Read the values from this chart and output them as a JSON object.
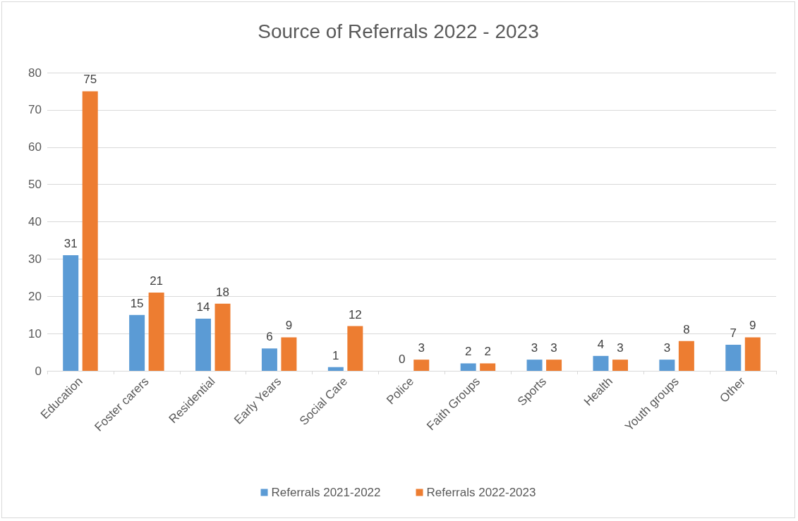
{
  "chart_data": {
    "type": "bar",
    "title": "Source of Referrals 2022 - 2023",
    "categories": [
      "Education",
      "Foster carers",
      "Residential",
      "Early Years",
      "Social Care",
      "Police",
      "Faith Groups",
      "Sports",
      "Health",
      "Youth groups",
      "Other"
    ],
    "series": [
      {
        "name": "Referrals 2021-2022",
        "color": "#5b9bd5",
        "values": [
          31,
          15,
          14,
          6,
          1,
          0,
          2,
          3,
          4,
          3,
          7
        ]
      },
      {
        "name": "Referrals 2022-2023",
        "color": "#ed7d31",
        "values": [
          75,
          21,
          18,
          9,
          12,
          3,
          2,
          3,
          3,
          8,
          9
        ]
      }
    ],
    "ylim": [
      0,
      80
    ],
    "yticks": [
      0,
      10,
      20,
      30,
      40,
      50,
      60,
      70,
      80
    ],
    "grid": "y",
    "legend": "bottom",
    "data_labels": true
  }
}
